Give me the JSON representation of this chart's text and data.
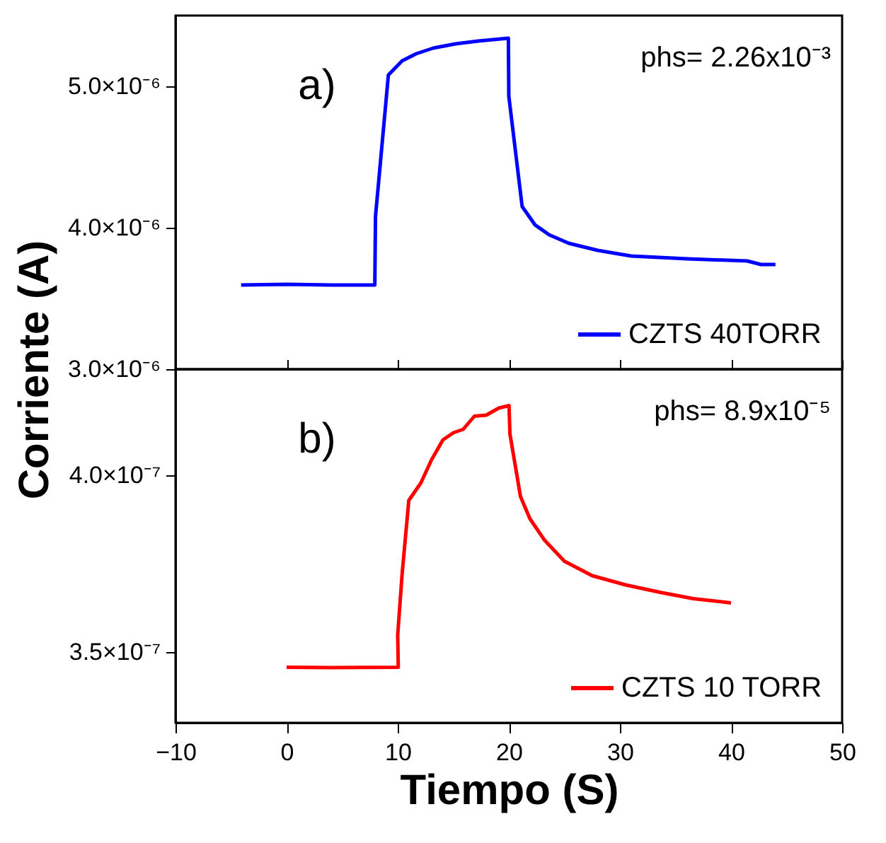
{
  "chart_data": [
    {
      "type": "line",
      "ylabel": "Corriente (A)",
      "annotations": [
        "a)",
        "phs= 2.26x10⁻³"
      ],
      "xlim": [
        -10,
        50
      ],
      "xticks": [
        -10,
        0,
        10,
        20,
        30,
        40,
        50
      ],
      "ylim": [
        3e-06,
        5.5e-06
      ],
      "yticks": [
        {
          "value": 3e-06,
          "label": "3.0×10⁻⁶"
        },
        {
          "value": 4e-06,
          "label": "4.0×10⁻⁶"
        },
        {
          "value": 5e-06,
          "label": "5.0×10⁻⁶"
        }
      ],
      "tick_labels": "y",
      "legend": "bottom right",
      "grid": false,
      "series": [
        {
          "name": "CZTS 40TORR",
          "color": "#0000ff",
          "x": [
            -4.1,
            0,
            4,
            7.94,
            8,
            9.16,
            10.4,
            11.66,
            13.2,
            15.2,
            17.26,
            19.96,
            20,
            21.2,
            22.36,
            23.63,
            25.4,
            28,
            31,
            36.1,
            41.46,
            42.7,
            44
          ],
          "values": [
            3.595e-06,
            3.6e-06,
            3.595e-06,
            3.595e-06,
            4.08e-06,
            5.08e-06,
            5.18e-06,
            5.23e-06,
            5.27e-06,
            5.3e-06,
            5.32e-06,
            5.34e-06,
            4.93e-06,
            4.15e-06,
            4.02e-06,
            3.95e-06,
            3.89e-06,
            3.84e-06,
            3.8e-06,
            3.78e-06,
            3.765e-06,
            3.74e-06,
            3.74e-06
          ]
        }
      ]
    },
    {
      "type": "line",
      "xlabel": "Tiempo (S)",
      "annotations": [
        "b)",
        "phs= 8.9x10⁻⁵"
      ],
      "xlim": [
        -10,
        50
      ],
      "xticks": [
        -10,
        0,
        10,
        20,
        30,
        40,
        50
      ],
      "ylim": [
        3.3e-07,
        4.3e-07
      ],
      "yticks": [
        {
          "value": 3.5e-07,
          "label": "3.5×10⁻⁷"
        },
        {
          "value": 4e-07,
          "label": "4.0×10⁻⁷"
        }
      ],
      "legend": "bottom right",
      "grid": false,
      "series": [
        {
          "name": "CZTS 10 TORR",
          "color": "#ff0000",
          "x": [
            0,
            4.08,
            10.05,
            10,
            10.4,
            11.0,
            12.08,
            13.05,
            14.07,
            15,
            15.9,
            16.9,
            17.97,
            19.1,
            20.02,
            20.1,
            21.05,
            21.9,
            23.2,
            25.0,
            27.5,
            30.5,
            33.6,
            36.6,
            40
          ],
          "values": [
            3.457e-07,
            3.456e-07,
            3.457e-07,
            3.549e-07,
            3.722e-07,
            3.929e-07,
            3.978e-07,
            4.044e-07,
            4.1e-07,
            4.12e-07,
            4.13e-07,
            4.167e-07,
            4.17e-07,
            4.19e-07,
            4.197e-07,
            4.117e-07,
            3.94e-07,
            3.877e-07,
            3.817e-07,
            3.757e-07,
            3.716e-07,
            3.69e-07,
            3.669e-07,
            3.651e-07,
            3.639e-07
          ]
        }
      ]
    }
  ]
}
